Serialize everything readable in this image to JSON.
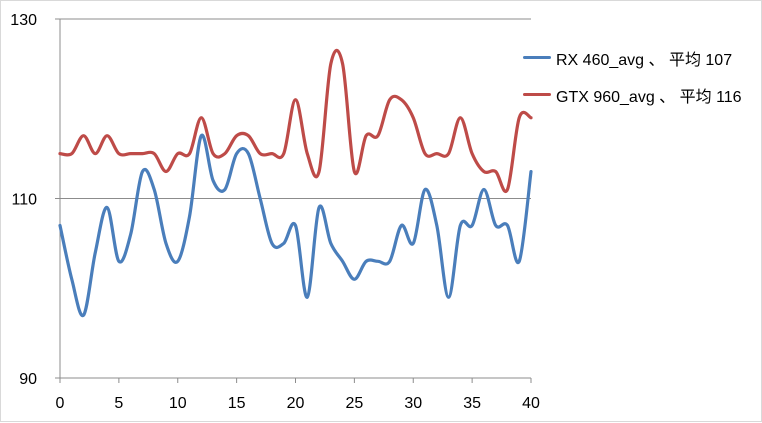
{
  "chart_data": {
    "type": "line",
    "title": "",
    "xlabel": "",
    "ylabel": "",
    "x": [
      0,
      1,
      2,
      3,
      4,
      5,
      6,
      7,
      8,
      9,
      10,
      11,
      12,
      13,
      14,
      15,
      16,
      17,
      18,
      19,
      20,
      21,
      22,
      23,
      24,
      25,
      26,
      27,
      28,
      29,
      30,
      31,
      32,
      33,
      34,
      35,
      36,
      37,
      38,
      39,
      40
    ],
    "xlim": [
      0,
      40
    ],
    "ylim": [
      90,
      130
    ],
    "x_ticks": [
      "0",
      "5",
      "10",
      "15",
      "20",
      "25",
      "30",
      "35",
      "40"
    ],
    "y_ticks": [
      "130",
      "110",
      "90"
    ],
    "grid": "horizontal at 110 and 130",
    "legend_position": "right",
    "series": [
      {
        "name": "RX 460_avg 、 平均 107",
        "color": "#4a7ebb",
        "values": [
          107,
          101,
          97,
          104,
          109,
          103,
          106,
          113,
          111,
          105,
          103,
          108,
          117,
          112,
          111,
          115,
          115,
          110,
          105,
          105,
          107,
          99,
          109,
          105,
          103,
          101,
          103,
          103,
          103,
          107,
          105,
          111,
          107,
          99,
          107,
          107,
          111,
          107,
          107,
          103,
          113
        ]
      },
      {
        "name": "GTX 960_avg 、 平均 116",
        "color": "#be4b48",
        "values": [
          115,
          115,
          117,
          115,
          117,
          115,
          115,
          115,
          115,
          113,
          115,
          115,
          119,
          115,
          115,
          117,
          117,
          115,
          115,
          115,
          121,
          115,
          113,
          125,
          125,
          113,
          117,
          117,
          121,
          121,
          119,
          115,
          115,
          115,
          119,
          115,
          113,
          113,
          111,
          119,
          119
        ]
      }
    ]
  }
}
